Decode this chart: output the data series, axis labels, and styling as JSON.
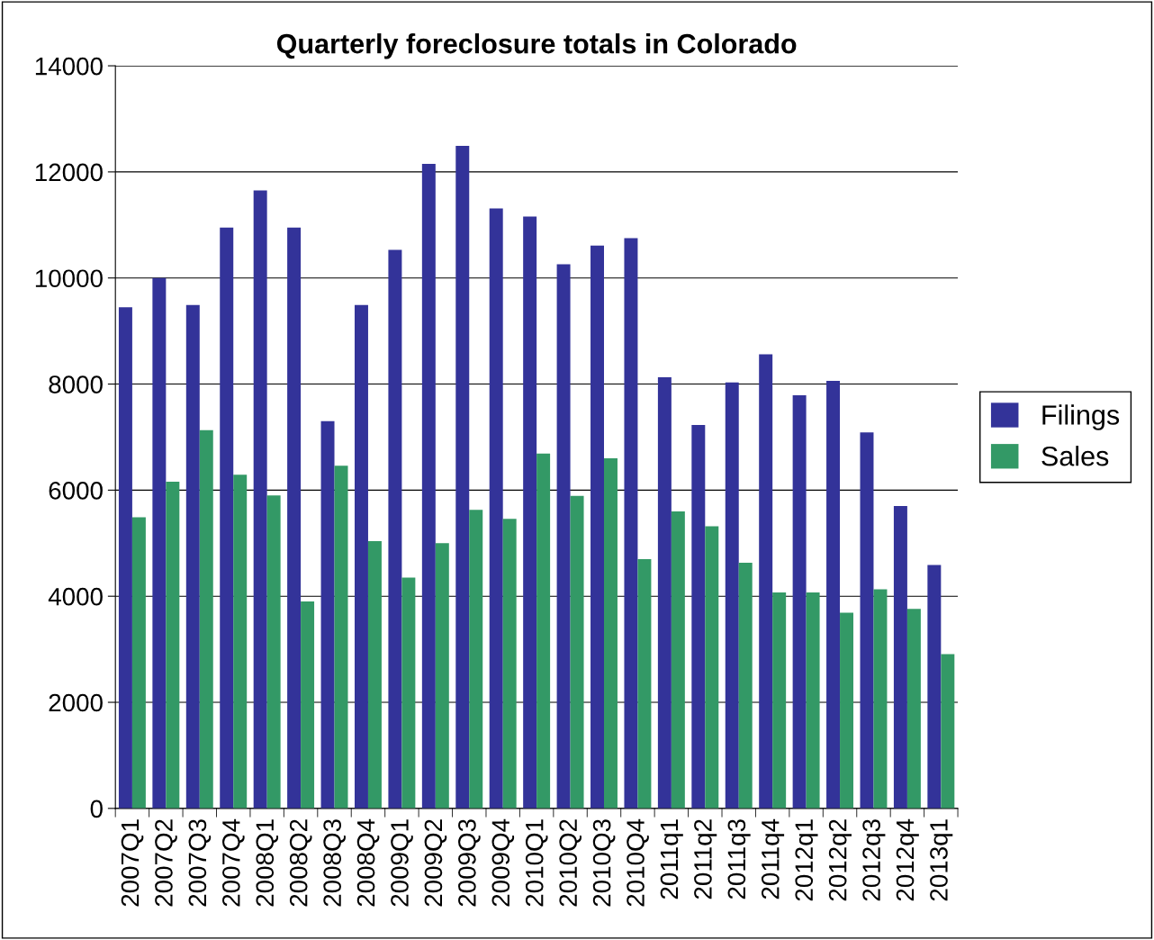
{
  "chart_data": {
    "type": "bar",
    "title": "Quarterly foreclosure totals in Colorado",
    "categories": [
      "2007Q1",
      "2007Q2",
      "2007Q3",
      "2007Q4",
      "2008Q1",
      "2008Q2",
      "2008Q3",
      "2008Q4",
      "2009Q1",
      "2009Q2",
      "2009Q3",
      "2009Q4",
      "2010Q1",
      "2010Q2",
      "2010Q3",
      "2010Q4",
      "2011q1",
      "2011q2",
      "2011q3",
      "2011q4",
      "2012q1",
      "2012q2",
      "2012q3",
      "2012q4",
      "2013q1"
    ],
    "series": [
      {
        "name": "Filings",
        "color": "#333399",
        "values": [
          9450,
          10000,
          9490,
          10950,
          11650,
          10950,
          7300,
          9490,
          10530,
          12150,
          12490,
          11310,
          11160,
          10260,
          10610,
          10750,
          8130,
          7230,
          8030,
          8560,
          7790,
          8060,
          7090,
          5700,
          4590
        ]
      },
      {
        "name": "Sales",
        "color": "#339966",
        "values": [
          5490,
          6160,
          7130,
          6290,
          5900,
          3900,
          6460,
          5040,
          4350,
          5000,
          5630,
          5460,
          6690,
          5890,
          6600,
          4700,
          5600,
          5320,
          4630,
          4070,
          4070,
          3690,
          4130,
          3760,
          2910
        ]
      }
    ],
    "ylim": [
      0,
      14000
    ],
    "yticks": [
      0,
      2000,
      4000,
      6000,
      8000,
      10000,
      12000,
      14000
    ],
    "grid": "y",
    "legend": "right"
  }
}
